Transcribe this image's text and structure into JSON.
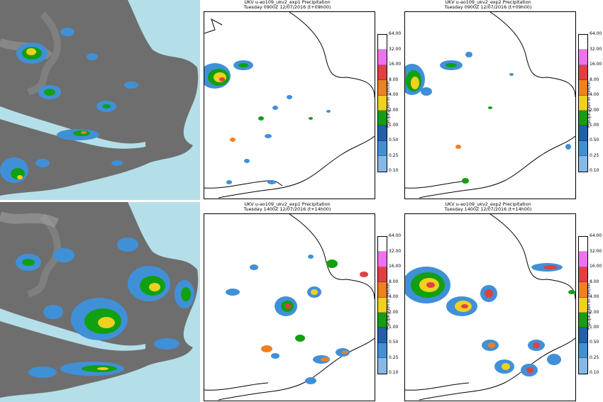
{
  "colorbar": {
    "unit_label": "Precipitation in mm/hh",
    "ticks": [
      "64.00",
      "32.00",
      "16.00",
      "8.00",
      "4.00",
      "2.00",
      "1.00",
      "0.50",
      "0.25",
      "0.10"
    ],
    "colors": [
      "#ffffff",
      "#f070f0",
      "#e04040",
      "#f08020",
      "#f0d020",
      "#10a010",
      "#2060b0",
      "#4090d8",
      "#86b8e8"
    ]
  },
  "rows": [
    {
      "time": "0900Z",
      "panels": [
        {
          "title_line1": "UKV u-ao109_ukv2_exp1 Precipitation",
          "title_line2": "Tuesday 0900Z 12/07/2016 (t+09h00)"
        },
        {
          "title_line1": "UKV u-ao109_ukv2_exp2 Precipitation",
          "title_line2": "Tuesday 0900Z 12/07/2016 (t+09h00)"
        }
      ]
    },
    {
      "time": "1400Z",
      "panels": [
        {
          "title_line1": "UKV u-ao109_ukv2_exp1 Precipitation",
          "title_line2": "Tuesday 1400Z 12/07/2016 (t+14h00)"
        },
        {
          "title_line1": "UKV u-ao109_ukv2_exp2 Precipitation",
          "title_line2": "Tuesday 1400Z 12/07/2016 (t+14h00)"
        }
      ]
    }
  ]
}
